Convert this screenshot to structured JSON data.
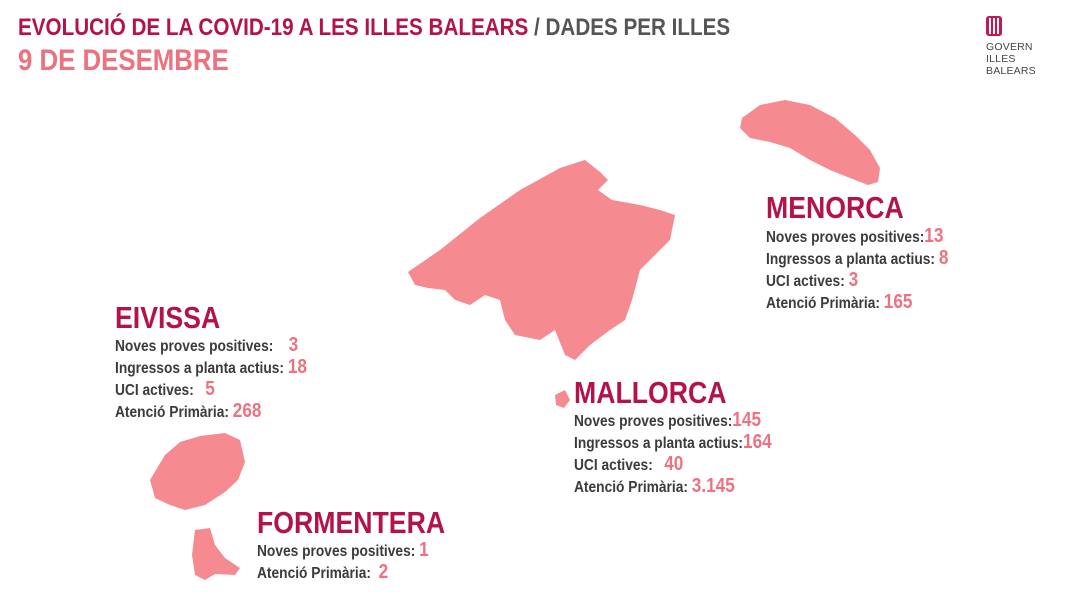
{
  "header": {
    "title": "EVOLUCIÓ DE LA COVID-19 A LES ILLES BALEARS",
    "separator": " / ",
    "subtitle": "DADES PER ILLES",
    "date": "9 DE DESEMBRE"
  },
  "logo": {
    "lines": [
      "GOVERN",
      "ILLES",
      "BALEARS"
    ]
  },
  "colors": {
    "title": "#b3124b",
    "accent": "#ec7280",
    "island": "#f58a90",
    "text": "#3b3b3b"
  },
  "islands": {
    "menorca": {
      "name": "MENORCA",
      "stats": [
        {
          "label": "Noves proves positives:",
          "value": "13"
        },
        {
          "label": "Ingressos a planta actius:",
          "value": "8"
        },
        {
          "label": "UCI actives:",
          "value": "3"
        },
        {
          "label": "Atenció Primària:",
          "value": "165"
        }
      ]
    },
    "eivissa": {
      "name": "EIVISSA",
      "stats": [
        {
          "label": "Noves proves positives:",
          "value": "3"
        },
        {
          "label": "Ingressos a planta actius:",
          "value": "18"
        },
        {
          "label": "UCI actives:",
          "value": "5"
        },
        {
          "label": "Atenció Primària:",
          "value": "268"
        }
      ]
    },
    "mallorca": {
      "name": "MALLORCA",
      "stats": [
        {
          "label": "Noves proves positives:",
          "value": "145"
        },
        {
          "label": "Ingressos a planta actius:",
          "value": "164"
        },
        {
          "label": "UCI actives:",
          "value": "40"
        },
        {
          "label": "Atenció Primària:",
          "value": "3.145"
        }
      ]
    },
    "formentera": {
      "name": "FORMENTERA",
      "stats": [
        {
          "label": "Noves proves positives:",
          "value": "1"
        },
        {
          "label": "Atenció Primària:",
          "value": "2"
        }
      ]
    }
  }
}
